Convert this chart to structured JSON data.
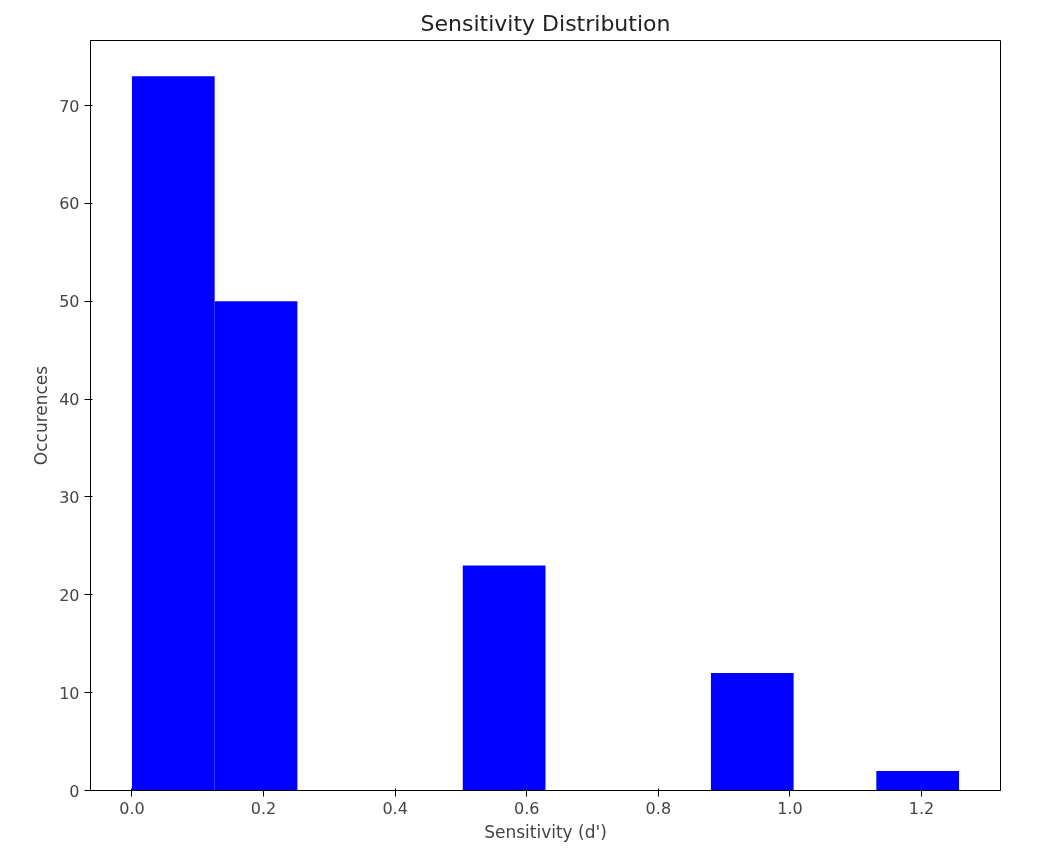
{
  "chart_data": {
    "type": "histogram",
    "title": "Sensitivity Distribution",
    "xlabel": "Sensitivity (d')",
    "ylabel": "Occurences",
    "bins": [
      0,
      0.1257,
      0.2514,
      0.3771,
      0.5028,
      0.6285,
      0.7542,
      0.8799,
      1.0056,
      1.1313,
      1.257
    ],
    "values": [
      73,
      50,
      0,
      0,
      23,
      0,
      0,
      12,
      0,
      2
    ],
    "color": "#0000ff",
    "xlim": [
      -0.063,
      1.32
    ],
    "ylim": [
      0,
      76.65
    ],
    "xticks": [
      {
        "value": 0,
        "label": "0.0"
      },
      0.2,
      0.4,
      0.6,
      0.8,
      {
        "value": 1,
        "label": "1.0"
      },
      1.2
    ],
    "yticks": [
      0,
      10,
      20,
      30,
      40,
      50,
      60,
      70
    ],
    "grid": false
  }
}
